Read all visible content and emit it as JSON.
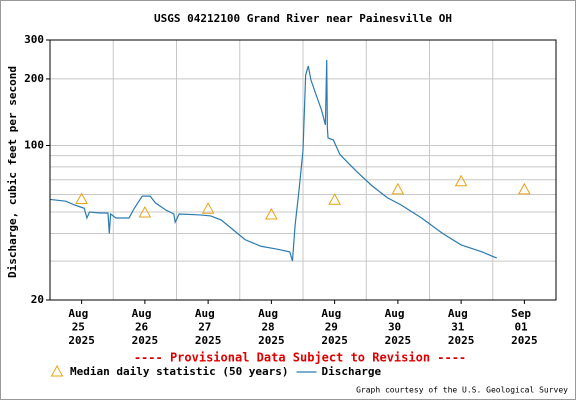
{
  "chart_data": {
    "type": "line",
    "title": "USGS 04212100 Grand River near Painesville OH",
    "y_label": "Discharge, cubic feet per second",
    "log_y": true,
    "ylim": [
      20,
      300
    ],
    "yticks": [
      20,
      100,
      200,
      300
    ],
    "y_minor_ticks": [
      30,
      40,
      50,
      60,
      70,
      80,
      90
    ],
    "xlim": [
      "2025-08-25 00:00",
      "2025-09-02 00:00"
    ],
    "xticks": [
      {
        "value": "2025-08-25 12:00",
        "label": "Aug 25 2025"
      },
      {
        "value": "2025-08-26 12:00",
        "label": "Aug 26 2025"
      },
      {
        "value": "2025-08-27 12:00",
        "label": "Aug 27 2025"
      },
      {
        "value": "2025-08-28 12:00",
        "label": "Aug 28 2025"
      },
      {
        "value": "2025-08-29 12:00",
        "label": "Aug 29 2025"
      },
      {
        "value": "2025-08-30 12:00",
        "label": "Aug 30 2025"
      },
      {
        "value": "2025-08-31 12:00",
        "label": "Aug 31 2025"
      },
      {
        "value": "2025-09-01 12:00",
        "label": "Sep 01 2025"
      }
    ],
    "x_gridlines": [
      "2025-08-26 00:00",
      "2025-08-27 00:00",
      "2025-08-28 00:00",
      "2025-08-29 00:00",
      "2025-08-30 00:00",
      "2025-08-31 00:00",
      "2025-09-01 00:00"
    ],
    "grid": true,
    "notice": "---- Provisional Data Subject to Revision ----",
    "credit": "Graph courtesy of the U.S. Geological Survey",
    "series": [
      {
        "name": "Median daily statistic (50 years)",
        "color": "#e8a317",
        "marker": "triangle",
        "x": [
          "2025-08-25 12:00",
          "2025-08-26 12:00",
          "2025-08-27 12:00",
          "2025-08-28 12:00",
          "2025-08-29 12:00",
          "2025-08-30 12:00",
          "2025-08-31 12:00",
          "2025-09-01 12:00"
        ],
        "values": [
          57,
          49.5,
          51.5,
          48.5,
          56.5,
          63,
          68.5,
          63
        ]
      },
      {
        "name": "Discharge",
        "color": "#2b7bb0",
        "marker": "line",
        "x": [
          "2025-08-25 00:00",
          "2025-08-25 06:00",
          "2025-08-25 09:00",
          "2025-08-25 13:00",
          "2025-08-25 14:00",
          "2025-08-25 15:00",
          "2025-08-25 19:00",
          "2025-08-25 22:00",
          "2025-08-25 22:30",
          "2025-08-25 23:00",
          "2025-08-26 01:00",
          "2025-08-26 06:00",
          "2025-08-26 08:00",
          "2025-08-26 11:00",
          "2025-08-26 14:00",
          "2025-08-26 16:00",
          "2025-08-26 20:00",
          "2025-08-26 23:00",
          "2025-08-26 23:30",
          "2025-08-27 01:00",
          "2025-08-27 09:00",
          "2025-08-27 13:00",
          "2025-08-27 17:00",
          "2025-08-27 21:00",
          "2025-08-28 02:00",
          "2025-08-28 08:00",
          "2025-08-28 14:00",
          "2025-08-28 19:00",
          "2025-08-28 20:00",
          "2025-08-28 21:00",
          "2025-08-28 22:30",
          "2025-08-29 00:00",
          "2025-08-29 01:00",
          "2025-08-29 02:00",
          "2025-08-29 03:00",
          "2025-08-29 05:00",
          "2025-08-29 07:00",
          "2025-08-29 08:30",
          "2025-08-29 09:00",
          "2025-08-29 09:15",
          "2025-08-29 09:30",
          "2025-08-29 11:30",
          "2025-08-29 14:00",
          "2025-08-29 20:00",
          "2025-08-30 02:00",
          "2025-08-30 08:00",
          "2025-08-30 13:00",
          "2025-08-30 21:00",
          "2025-08-31 05:00",
          "2025-08-31 12:00",
          "2025-08-31 20:00",
          "2025-09-01 00:00",
          "2025-09-01 01:30"
        ],
        "values": [
          57,
          56,
          54,
          52,
          47,
          50,
          49.5,
          49.5,
          40,
          49,
          47,
          47,
          52,
          59,
          59,
          55,
          51,
          49,
          45,
          49,
          48.5,
          48,
          46,
          42,
          37.5,
          35,
          34,
          33,
          30,
          43.5,
          63,
          95,
          208,
          229,
          198,
          169,
          145,
          124,
          244,
          120,
          108,
          106,
          91,
          77,
          66,
          58,
          54,
          47,
          40,
          35.5,
          33,
          31.5,
          31
        ]
      }
    ]
  }
}
